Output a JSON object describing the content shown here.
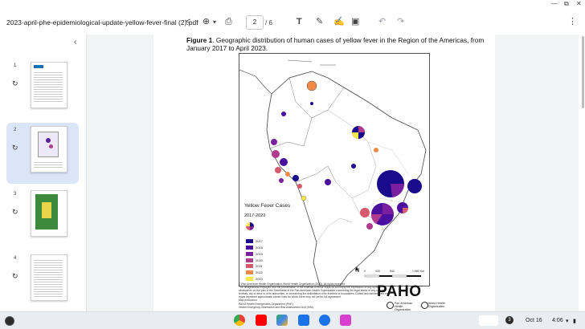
{
  "window": {
    "minimize": "—",
    "restore": "⧉",
    "close": "✕"
  },
  "toolbar": {
    "file_name": "2023-april-phe-epidemiological-update-yellow-fever-final (2).pdf",
    "current_page": "2",
    "page_separator": "/ 6",
    "zoom_caret": "▾"
  },
  "sidebar": {
    "collapse_icon": "chevron-left-icon",
    "pages": [
      {
        "num": "1"
      },
      {
        "num": "2"
      },
      {
        "num": "3"
      },
      {
        "num": "4"
      }
    ]
  },
  "document": {
    "caption_bold": "Figure 1",
    "caption_rest": ". Geographic distribution of human cases of yellow fever in the Region of the Americas, from January 2017 to April 2023.",
    "legend_title": "Yellow Fever Cases",
    "legend_subtitle": "2017-2023",
    "legend_items": [
      {
        "year": "2017",
        "color": "#1a0a8c"
      },
      {
        "year": "2018",
        "color": "#4b0fa0"
      },
      {
        "year": "2019",
        "color": "#7a1fa0"
      },
      {
        "year": "2020",
        "color": "#b03a8c"
      },
      {
        "year": "2021",
        "color": "#d65a6c"
      },
      {
        "year": "2022",
        "color": "#f08a4a"
      },
      {
        "year": "2023",
        "color": "#f7e84a"
      }
    ],
    "scale_labels": [
      "0",
      "420",
      "840",
      "1,680 Km"
    ],
    "north": "N",
    "footer_lines": [
      "© Pan American Health Organization-World Health Organization (2023). All rights reserved.",
      "The designations employed and the presentation of the material in these maps do not imply the expression of any opinion",
      "whatsoever on the part of the Secretariat of the Pan American Health Organization concerning the legal status of any country,",
      "territory, city or area or of its authorities, or concerning the delimitation of its frontiers or boundaries. Dotted and dashed lines on",
      "maps represent approximate border lines for which there may not yet be full agreement.",
      "Map production:",
      "PAHO Health Emergencies Department (PHE)",
      "Health Emergency Information and Risk Assessment Unit (HIM)"
    ],
    "paho_logo": "PAHO",
    "paho_sub1": "Pan American\nHealth\nOrganization",
    "paho_sub2": "World Health\nOrganization"
  },
  "taskbar": {
    "notification_count": "3",
    "date": "Oct 16",
    "time": "4:06"
  }
}
